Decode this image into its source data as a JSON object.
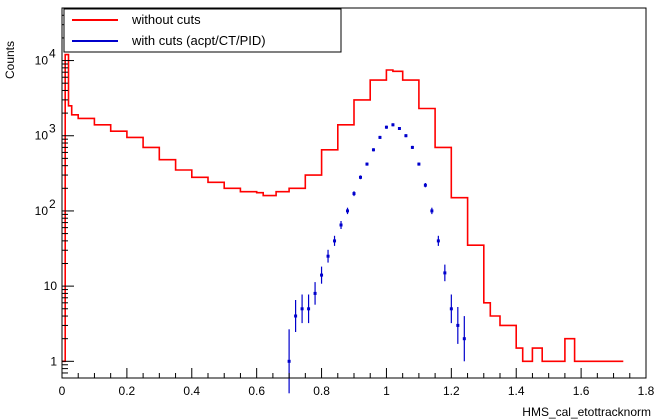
{
  "chart_data": {
    "type": "histogram",
    "xlabel": "HMS_cal_etottracknorm",
    "ylabel": "Counts",
    "xlim": [
      0,
      1.8
    ],
    "ylim": [
      0.6,
      50000
    ],
    "yscale": "log",
    "grid": false,
    "legend_position": "top-left",
    "x_ticks": [
      {
        "v": 0,
        "label": "0"
      },
      {
        "v": 0.2,
        "label": "0.2"
      },
      {
        "v": 0.4,
        "label": "0.4"
      },
      {
        "v": 0.6,
        "label": "0.6"
      },
      {
        "v": 0.8,
        "label": "0.8"
      },
      {
        "v": 1.0,
        "label": "1"
      },
      {
        "v": 1.2,
        "label": "1.2"
      },
      {
        "v": 1.4,
        "label": "1.4"
      },
      {
        "v": 1.6,
        "label": "1.6"
      },
      {
        "v": 1.8,
        "label": "1.8"
      }
    ],
    "y_ticks": [
      {
        "v": 1,
        "label": "1"
      },
      {
        "v": 10,
        "label": "10"
      },
      {
        "v": 100,
        "label": "10",
        "exp": "2"
      },
      {
        "v": 1000,
        "label": "10",
        "exp": "3"
      },
      {
        "v": 10000,
        "label": "10",
        "exp": "4"
      }
    ],
    "series": [
      {
        "name": "without cuts",
        "color": "#ff0000",
        "style": "step",
        "x": [
          0.0,
          0.01,
          0.02,
          0.03,
          0.05,
          0.1,
          0.15,
          0.2,
          0.25,
          0.3,
          0.35,
          0.4,
          0.45,
          0.5,
          0.55,
          0.6,
          0.62,
          0.64,
          0.66,
          0.7,
          0.75,
          0.8,
          0.85,
          0.9,
          0.95,
          1.0,
          1.02,
          1.05,
          1.1,
          1.15,
          1.2,
          1.25,
          1.3,
          1.32,
          1.35,
          1.4,
          1.42,
          1.45,
          1.48,
          1.5,
          1.52,
          1.55,
          1.58,
          1.6,
          1.65,
          1.7,
          1.72
        ],
        "y": [
          1,
          12000,
          2500,
          1900,
          1700,
          1400,
          1150,
          950,
          700,
          480,
          350,
          280,
          240,
          200,
          180,
          175,
          160,
          160,
          180,
          200,
          300,
          650,
          1400,
          3000,
          5500,
          7500,
          7200,
          5500,
          2300,
          700,
          150,
          35,
          6,
          4,
          3,
          1.5,
          1,
          1.5,
          1,
          1,
          1,
          2,
          1,
          1,
          1,
          1,
          1
        ]
      },
      {
        "name": "with cuts (acpt/CT/PID)",
        "color": "#0000cc",
        "style": "points",
        "x": [
          0.7,
          0.72,
          0.74,
          0.76,
          0.78,
          0.8,
          0.82,
          0.84,
          0.86,
          0.88,
          0.9,
          0.92,
          0.94,
          0.96,
          0.98,
          1.0,
          1.02,
          1.04,
          1.06,
          1.08,
          1.1,
          1.12,
          1.14,
          1.16,
          1.18,
          1.2,
          1.22,
          1.24
        ],
        "y": [
          1,
          4,
          5,
          5,
          8,
          14,
          25,
          40,
          65,
          100,
          170,
          280,
          420,
          650,
          950,
          1300,
          1400,
          1250,
          1000,
          700,
          420,
          220,
          100,
          40,
          15,
          5,
          3,
          2
        ]
      }
    ]
  }
}
